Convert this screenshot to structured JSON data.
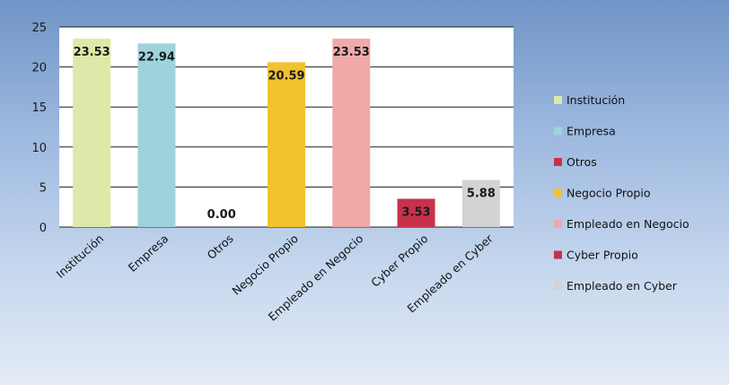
{
  "chart_data": {
    "type": "bar",
    "categories": [
      "Institución",
      "Empresa",
      "Otros",
      "Negocio Propio",
      "Empleado en Negocio",
      "Cyber Propio",
      "Empleado en Cyber"
    ],
    "values": [
      23.53,
      22.94,
      0.0,
      20.59,
      23.53,
      3.53,
      5.88
    ],
    "value_labels": [
      "23.53",
      "22.94",
      "0.00",
      "20.59",
      "23.53",
      "3.53",
      "5.88"
    ],
    "colors": [
      "#dde9a8",
      "#9fd3dc",
      "#c8314a",
      "#f2c12e",
      "#efaaa8",
      "#c8314a",
      "#d3d3d3"
    ],
    "ylim": [
      0,
      25
    ],
    "yticks": [
      "0",
      "5",
      "10",
      "15",
      "20",
      "25"
    ],
    "ytick_values": [
      0,
      5,
      10,
      15,
      20,
      25
    ],
    "grid": true,
    "legend_position": "right",
    "legend": [
      "Institución",
      "Empresa",
      "Otros",
      "Negocio Propio",
      "Empleado en Negocio",
      "Cyber Propio",
      "Empleado en Cyber"
    ]
  }
}
